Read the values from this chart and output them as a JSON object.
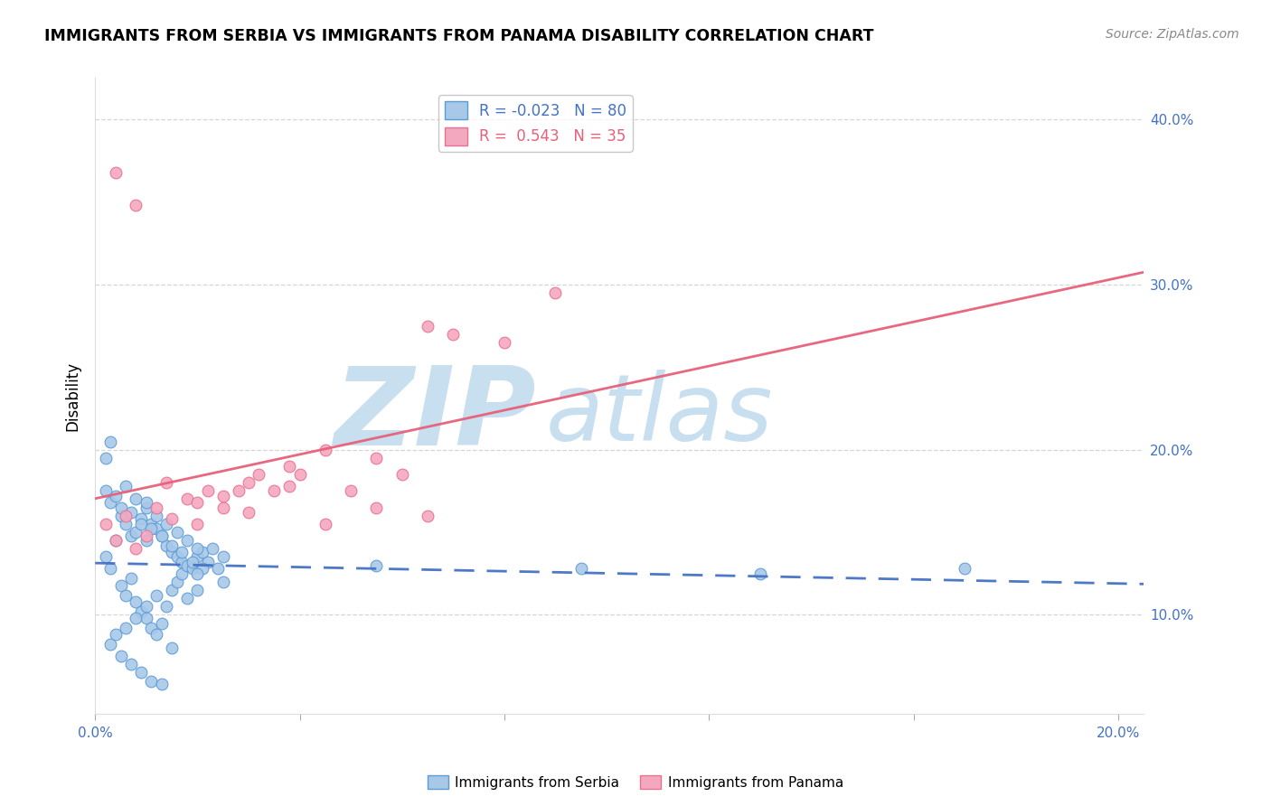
{
  "title": "IMMIGRANTS FROM SERBIA VS IMMIGRANTS FROM PANAMA DISABILITY CORRELATION CHART",
  "source": "Source: ZipAtlas.com",
  "ylabel": "Disability",
  "xlim": [
    0.0,
    0.205
  ],
  "ylim": [
    0.04,
    0.425
  ],
  "y_tick_positions": [
    0.1,
    0.2,
    0.3,
    0.4
  ],
  "y_tick_labels": [
    "10.0%",
    "20.0%",
    "30.0%",
    "40.0%"
  ],
  "x_tick_positions": [
    0.0,
    0.04,
    0.08,
    0.12,
    0.16,
    0.2
  ],
  "x_tick_show": [
    "0.0%",
    "",
    "",
    "",
    "",
    "20.0%"
  ],
  "serbia_color": "#a8c8e8",
  "panama_color": "#f4a8c0",
  "serbia_edge_color": "#5b9bd5",
  "panama_edge_color": "#e87090",
  "serbia_line_color": "#4472c4",
  "panama_line_color": "#e8607a",
  "serbia_R": -0.023,
  "serbia_N": 80,
  "panama_R": 0.543,
  "panama_N": 35,
  "watermark_zip_color": "#c8dff0",
  "watermark_atlas_color": "#c8dff0",
  "legend_box_color": "#dddddd",
  "serbia_scatter_x": [
    0.002,
    0.003,
    0.004,
    0.005,
    0.005,
    0.006,
    0.006,
    0.007,
    0.007,
    0.008,
    0.008,
    0.009,
    0.009,
    0.01,
    0.01,
    0.01,
    0.011,
    0.011,
    0.012,
    0.012,
    0.013,
    0.013,
    0.014,
    0.014,
    0.015,
    0.015,
    0.016,
    0.016,
    0.017,
    0.017,
    0.018,
    0.018,
    0.019,
    0.02,
    0.02,
    0.021,
    0.022,
    0.023,
    0.024,
    0.025,
    0.002,
    0.003,
    0.004,
    0.005,
    0.006,
    0.007,
    0.008,
    0.009,
    0.01,
    0.011,
    0.012,
    0.013,
    0.014,
    0.015,
    0.016,
    0.017,
    0.018,
    0.019,
    0.02,
    0.021,
    0.003,
    0.004,
    0.005,
    0.006,
    0.007,
    0.008,
    0.009,
    0.01,
    0.011,
    0.012,
    0.013,
    0.015,
    0.02,
    0.025,
    0.055,
    0.095,
    0.13,
    0.17,
    0.002,
    0.003
  ],
  "serbia_scatter_y": [
    0.135,
    0.128,
    0.145,
    0.16,
    0.118,
    0.155,
    0.112,
    0.148,
    0.122,
    0.15,
    0.108,
    0.158,
    0.102,
    0.145,
    0.165,
    0.098,
    0.155,
    0.092,
    0.152,
    0.088,
    0.148,
    0.095,
    0.142,
    0.105,
    0.138,
    0.115,
    0.135,
    0.12,
    0.132,
    0.125,
    0.13,
    0.11,
    0.128,
    0.135,
    0.115,
    0.138,
    0.132,
    0.14,
    0.128,
    0.135,
    0.175,
    0.168,
    0.172,
    0.165,
    0.178,
    0.162,
    0.17,
    0.155,
    0.168,
    0.152,
    0.16,
    0.148,
    0.155,
    0.142,
    0.15,
    0.138,
    0.145,
    0.132,
    0.14,
    0.128,
    0.082,
    0.088,
    0.075,
    0.092,
    0.07,
    0.098,
    0.065,
    0.105,
    0.06,
    0.112,
    0.058,
    0.08,
    0.125,
    0.12,
    0.13,
    0.128,
    0.125,
    0.128,
    0.195,
    0.205
  ],
  "panama_scatter_x": [
    0.002,
    0.004,
    0.006,
    0.008,
    0.01,
    0.012,
    0.015,
    0.018,
    0.02,
    0.022,
    0.025,
    0.028,
    0.03,
    0.032,
    0.035,
    0.038,
    0.04,
    0.045,
    0.05,
    0.055,
    0.06,
    0.065,
    0.07,
    0.08,
    0.09,
    0.004,
    0.008,
    0.014,
    0.02,
    0.025,
    0.03,
    0.038,
    0.045,
    0.055,
    0.065
  ],
  "panama_scatter_y": [
    0.155,
    0.145,
    0.16,
    0.14,
    0.148,
    0.165,
    0.158,
    0.17,
    0.155,
    0.175,
    0.165,
    0.175,
    0.18,
    0.185,
    0.175,
    0.19,
    0.185,
    0.2,
    0.175,
    0.195,
    0.185,
    0.275,
    0.27,
    0.265,
    0.295,
    0.368,
    0.348,
    0.18,
    0.168,
    0.172,
    0.162,
    0.178,
    0.155,
    0.165,
    0.16
  ],
  "serbia_line_y0": 0.134,
  "serbia_line_y1": 0.13,
  "panama_line_y0": 0.128,
  "panama_line_y1": 0.348
}
